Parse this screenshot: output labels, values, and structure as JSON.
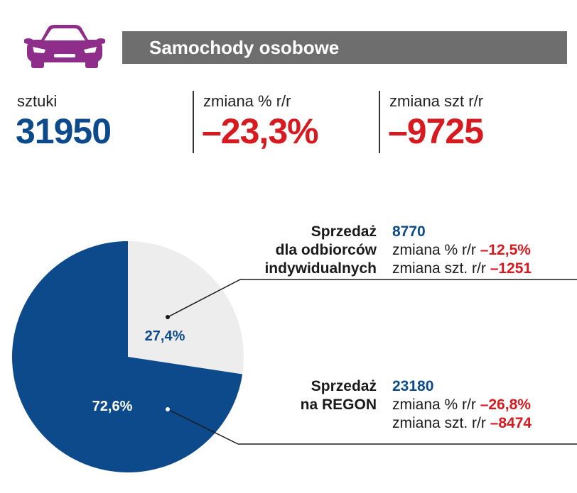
{
  "header": {
    "title": "Samochody osobowe",
    "icon": "car-icon",
    "icon_color": "#8e2d8a",
    "bar_color": "#6e6e6e"
  },
  "stats": [
    {
      "label": "sztuki",
      "value": "31950",
      "color": "#0d4a8c"
    },
    {
      "label": "zmiana % r/r",
      "value": "–23,3%",
      "color": "#d71920"
    },
    {
      "label": "zmiana szt r/r",
      "value": "–9725",
      "color": "#d71920"
    }
  ],
  "chart_data": {
    "type": "pie",
    "slices": [
      {
        "label": "27,4%",
        "value": 27.4,
        "color": "#ededed",
        "label_color": "#0d4a8c"
      },
      {
        "label": "72,6%",
        "value": 72.6,
        "color": "#0d4a8c",
        "label_color": "#ffffff"
      }
    ]
  },
  "segments": [
    {
      "title_lines": [
        "Sprzedaż",
        "dla odbiorców",
        "indywidualnych"
      ],
      "value": "8770",
      "pct_label": "zmiana % r/r",
      "pct_value": "–12,5%",
      "units_label": "zmiana szt. r/r",
      "units_value": "–1251"
    },
    {
      "title_lines": [
        "Sprzedaż",
        "na REGON"
      ],
      "value": "23180",
      "pct_label": "zmiana % r/r",
      "pct_value": "–26,8%",
      "units_label": "zmiana szt. r/r",
      "units_value": "–8474"
    }
  ]
}
